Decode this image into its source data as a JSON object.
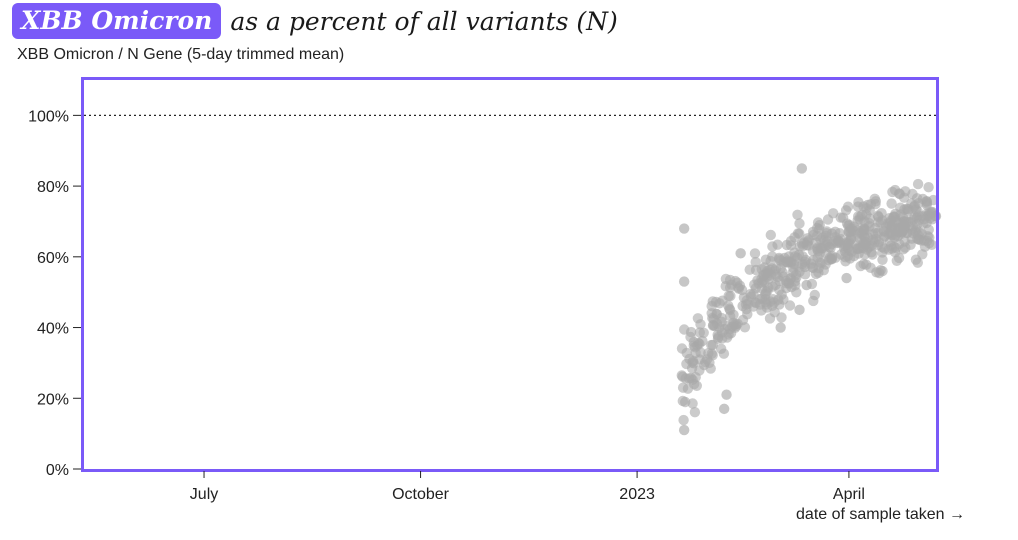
{
  "header": {
    "badge": "XBB Omicron",
    "title_rest": "as a percent of all variants (N)",
    "subtitle": "XBB Omicron / N Gene (5-day trimmed mean)"
  },
  "colors": {
    "accent": "#7a5af8",
    "points": "#a8a8a8"
  },
  "chart_data": {
    "type": "scatter",
    "title": "XBB Omicron as a percent of all variants (N)",
    "subtitle": "XBB Omicron / N Gene (5-day trimmed mean)",
    "xlabel": "date of sample taken →",
    "ylabel": "",
    "x_type": "date",
    "xlim": [
      "2022-05-11",
      "2023-05-08"
    ],
    "ylim": [
      0,
      110
    ],
    "yticks": [
      0,
      20,
      40,
      60,
      80,
      100
    ],
    "ytick_labels": [
      "0%",
      "20%",
      "40%",
      "60%",
      "80%",
      "100%"
    ],
    "xticks": [
      "2022-07-01",
      "2022-10-01",
      "2023-01-01",
      "2023-04-01"
    ],
    "xtick_labels": [
      "July",
      "October",
      "2023",
      "April"
    ],
    "reference_line": {
      "y": 100,
      "style": "dotted"
    },
    "grid": false,
    "trend": {
      "start": "2023-01-20",
      "end": "2023-05-08",
      "y_values": [
        25,
        42,
        50,
        57,
        63,
        66,
        68,
        70
      ]
    },
    "outliers": [
      {
        "x": "2023-01-21",
        "y": 68
      },
      {
        "x": "2023-01-21",
        "y": 11
      },
      {
        "x": "2023-01-21",
        "y": 53
      },
      {
        "x": "2023-02-07",
        "y": 17
      },
      {
        "x": "2023-02-08",
        "y": 21
      },
      {
        "x": "2023-02-14",
        "y": 61
      },
      {
        "x": "2023-03-03",
        "y": 40
      },
      {
        "x": "2023-03-12",
        "y": 85
      },
      {
        "x": "2023-03-11",
        "y": 45
      },
      {
        "x": "2023-03-14",
        "y": 52
      },
      {
        "x": "2023-03-31",
        "y": 54
      }
    ]
  }
}
